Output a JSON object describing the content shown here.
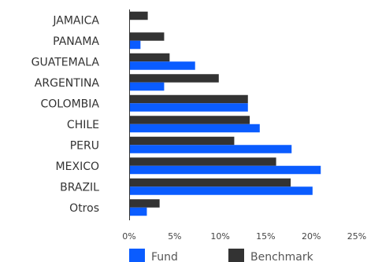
{
  "chart_data": {
    "type": "bar",
    "orientation": "horizontal",
    "categories": [
      "JAMAICA",
      "PANAMA",
      "GUATEMALA",
      "ARGENTINA",
      "COLOMBIA",
      "CHILE",
      "PERU",
      "MEXICO",
      "BRAZIL",
      "Otros"
    ],
    "series": [
      {
        "name": "Fund",
        "color": "#0a5cff",
        "values": [
          0,
          1.2,
          7.2,
          3.8,
          13.0,
          14.3,
          17.8,
          21.0,
          20.1,
          1.9
        ]
      },
      {
        "name": "Benchmark",
        "color": "#333333",
        "values": [
          2.0,
          3.8,
          4.4,
          9.8,
          13.0,
          13.2,
          11.5,
          16.1,
          17.7,
          3.3
        ]
      }
    ],
    "xlim": [
      0,
      25
    ],
    "x_ticks": [
      0,
      5,
      10,
      15,
      20,
      25
    ],
    "x_tick_labels": [
      "0%",
      "5%",
      "10%",
      "15%",
      "20%",
      "25%"
    ],
    "grid": false,
    "legend_position": "bottom"
  }
}
